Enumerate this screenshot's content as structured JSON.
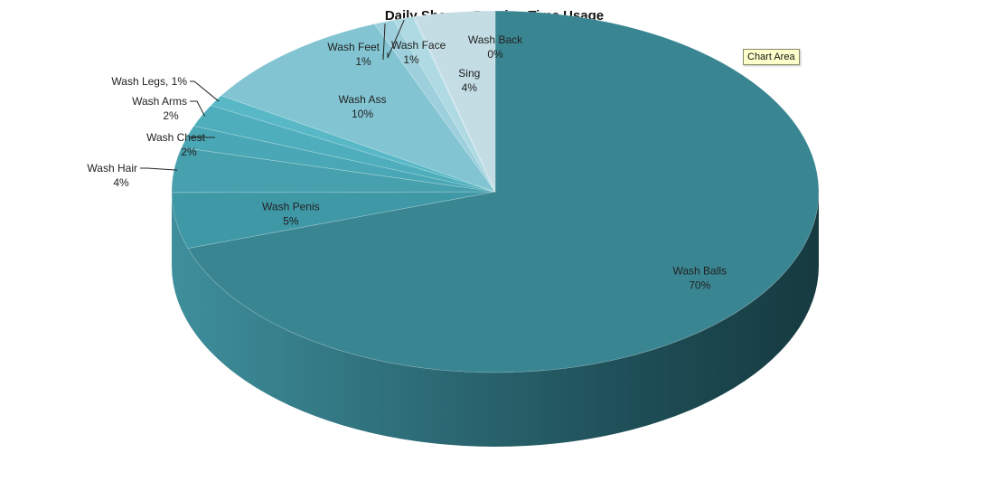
{
  "chart_data": {
    "type": "pie",
    "title": "Daily Shower Routine Time Usage",
    "slices": [
      {
        "label": "Wash Balls",
        "value": 70,
        "display": "70%",
        "color": "#3a8592"
      },
      {
        "label": "Wash Penis",
        "value": 5,
        "display": "5%",
        "color": "#3f98a6"
      },
      {
        "label": "Wash Hair",
        "value": 4,
        "display": "4%",
        "color": "#46a0ae"
      },
      {
        "label": "Wash Chest",
        "value": 2,
        "display": "2%",
        "color": "#4aa7b5"
      },
      {
        "label": "Wash Arms",
        "value": 2,
        "display": "2%",
        "color": "#4eaebc"
      },
      {
        "label": "Wash Legs",
        "value": 1,
        "display": "1%",
        "color": "#58b8c6"
      },
      {
        "label": "Wash Ass",
        "value": 10,
        "display": "10%",
        "color": "#82c4d2"
      },
      {
        "label": "Wash Feet",
        "value": 1,
        "display": "1%",
        "color": "#9dd0dc"
      },
      {
        "label": "Wash Face",
        "value": 1,
        "display": "1%",
        "color": "#afd9e3"
      },
      {
        "label": "Wash Back",
        "value": 0,
        "display": "0%",
        "color": "#bfe0e8"
      },
      {
        "label": "Sing",
        "value": 4,
        "display": "4%",
        "color": "#c4dde5"
      }
    ],
    "legend": "none"
  },
  "tooltip": {
    "text": "Chart Area"
  }
}
